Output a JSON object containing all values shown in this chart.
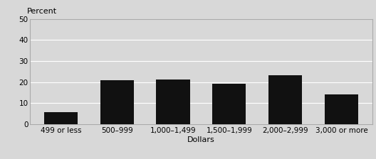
{
  "cat_labels": [
    "499 or less",
    "500–999",
    "1,000–1,499",
    "1,500–1,999",
    "2,000–2,999",
    "3,000 or more"
  ],
  "values": [
    5.5,
    21.0,
    21.2,
    19.2,
    23.3,
    14.2
  ],
  "bar_color": "#111111",
  "background_color": "#d8d8d8",
  "ylabel": "Percent",
  "xlabel": "Dollars",
  "ylim": [
    0,
    50
  ],
  "yticks": [
    0,
    10,
    20,
    30,
    40,
    50
  ],
  "grid_color": "#ffffff",
  "spine_color": "#aaaaaa",
  "tick_fontsize": 7.5,
  "label_fontsize": 8,
  "percent_fontsize": 8
}
